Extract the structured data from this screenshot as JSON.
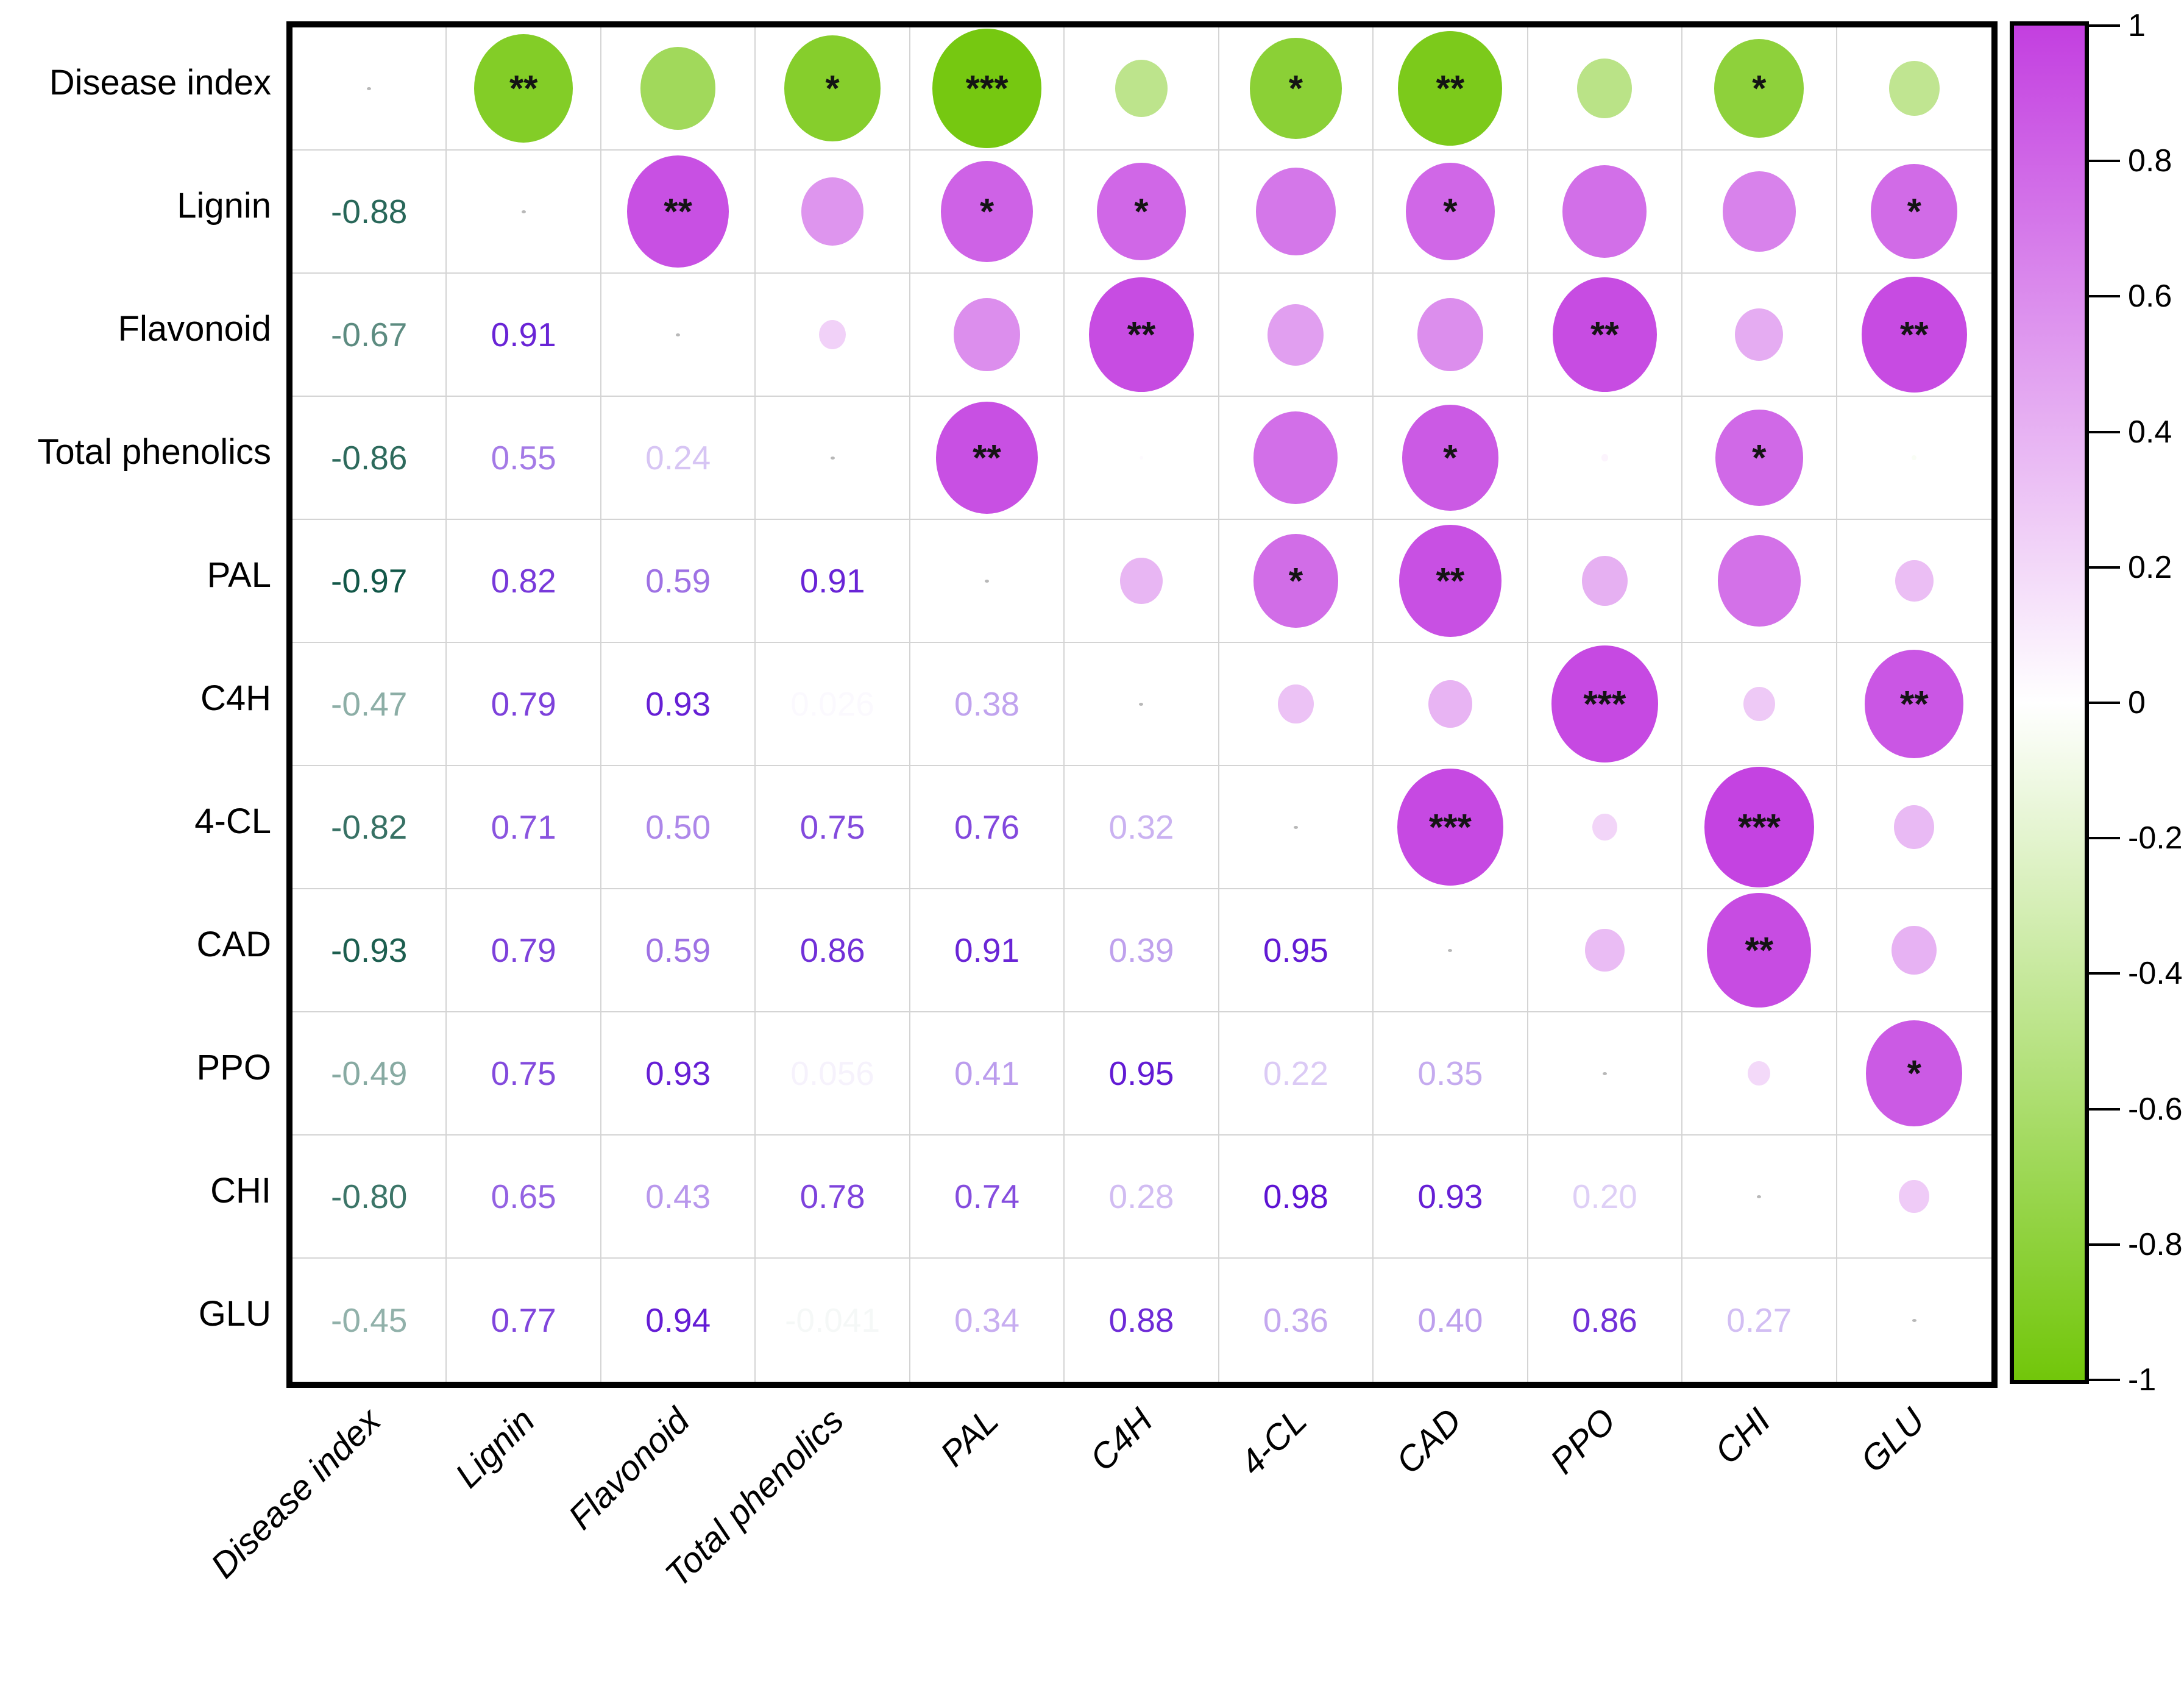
{
  "chart_data": {
    "type": "heatmap",
    "subtype": "correlation-matrix-bubble",
    "title": "",
    "variables": [
      "Disease index",
      "Lignin",
      "Flavonoid",
      "Total phenolics",
      "PAL",
      "C4H",
      "4-CL",
      "CAD",
      "PPO",
      "CHI",
      "GLU"
    ],
    "layout_notes": {
      "lower_triangle": "numeric correlation coefficients, text colored by value",
      "upper_triangle": "circles sized and colored by |r| with significance stars",
      "diagonal": "blank with tiny gray dot",
      "legend_position": "right colorbar"
    },
    "pairs": [
      {
        "a": 0,
        "b": 1,
        "r": -0.88,
        "label": "-0.88",
        "stars": "**"
      },
      {
        "a": 0,
        "b": 2,
        "r": -0.67,
        "label": "-0.67",
        "stars": ""
      },
      {
        "a": 0,
        "b": 3,
        "r": -0.86,
        "label": "-0.86",
        "stars": "*"
      },
      {
        "a": 0,
        "b": 4,
        "r": -0.97,
        "label": "-0.97",
        "stars": "***"
      },
      {
        "a": 0,
        "b": 5,
        "r": -0.47,
        "label": "-0.47",
        "stars": ""
      },
      {
        "a": 0,
        "b": 6,
        "r": -0.82,
        "label": "-0.82",
        "stars": "*"
      },
      {
        "a": 0,
        "b": 7,
        "r": -0.93,
        "label": "-0.93",
        "stars": "**"
      },
      {
        "a": 0,
        "b": 8,
        "r": -0.49,
        "label": "-0.49",
        "stars": ""
      },
      {
        "a": 0,
        "b": 9,
        "r": -0.8,
        "label": "-0.80",
        "stars": "*"
      },
      {
        "a": 0,
        "b": 10,
        "r": -0.45,
        "label": "-0.45",
        "stars": ""
      },
      {
        "a": 1,
        "b": 2,
        "r": 0.91,
        "label": "0.91",
        "stars": "**"
      },
      {
        "a": 1,
        "b": 3,
        "r": 0.55,
        "label": "0.55",
        "stars": ""
      },
      {
        "a": 1,
        "b": 4,
        "r": 0.82,
        "label": "0.82",
        "stars": "*"
      },
      {
        "a": 1,
        "b": 5,
        "r": 0.79,
        "label": "0.79",
        "stars": "*"
      },
      {
        "a": 1,
        "b": 6,
        "r": 0.71,
        "label": "0.71",
        "stars": ""
      },
      {
        "a": 1,
        "b": 7,
        "r": 0.79,
        "label": "0.79",
        "stars": "*"
      },
      {
        "a": 1,
        "b": 8,
        "r": 0.75,
        "label": "0.75",
        "stars": ""
      },
      {
        "a": 1,
        "b": 9,
        "r": 0.65,
        "label": "0.65",
        "stars": ""
      },
      {
        "a": 1,
        "b": 10,
        "r": 0.77,
        "label": "0.77",
        "stars": "*"
      },
      {
        "a": 2,
        "b": 3,
        "r": 0.24,
        "label": "0.24",
        "stars": ""
      },
      {
        "a": 2,
        "b": 4,
        "r": 0.59,
        "label": "0.59",
        "stars": ""
      },
      {
        "a": 2,
        "b": 5,
        "r": 0.93,
        "label": "0.93",
        "stars": "**"
      },
      {
        "a": 2,
        "b": 6,
        "r": 0.5,
        "label": "0.50",
        "stars": ""
      },
      {
        "a": 2,
        "b": 7,
        "r": 0.59,
        "label": "0.59",
        "stars": ""
      },
      {
        "a": 2,
        "b": 8,
        "r": 0.93,
        "label": "0.93",
        "stars": "**"
      },
      {
        "a": 2,
        "b": 9,
        "r": 0.43,
        "label": "0.43",
        "stars": ""
      },
      {
        "a": 2,
        "b": 10,
        "r": 0.94,
        "label": "0.94",
        "stars": "**"
      },
      {
        "a": 3,
        "b": 4,
        "r": 0.91,
        "label": "0.91",
        "stars": "**"
      },
      {
        "a": 3,
        "b": 5,
        "r": 0.026,
        "label": "0.026",
        "stars": ""
      },
      {
        "a": 3,
        "b": 6,
        "r": 0.75,
        "label": "0.75",
        "stars": ""
      },
      {
        "a": 3,
        "b": 7,
        "r": 0.86,
        "label": "0.86",
        "stars": "*"
      },
      {
        "a": 3,
        "b": 8,
        "r": 0.056,
        "label": "0.056",
        "stars": ""
      },
      {
        "a": 3,
        "b": 9,
        "r": 0.78,
        "label": "0.78",
        "stars": "*"
      },
      {
        "a": 3,
        "b": 10,
        "r": -0.041,
        "label": "-0.041",
        "stars": ""
      },
      {
        "a": 4,
        "b": 5,
        "r": 0.38,
        "label": "0.38",
        "stars": ""
      },
      {
        "a": 4,
        "b": 6,
        "r": 0.76,
        "label": "0.76",
        "stars": "*"
      },
      {
        "a": 4,
        "b": 7,
        "r": 0.91,
        "label": "0.91",
        "stars": "**"
      },
      {
        "a": 4,
        "b": 8,
        "r": 0.41,
        "label": "0.41",
        "stars": ""
      },
      {
        "a": 4,
        "b": 9,
        "r": 0.74,
        "label": "0.74",
        "stars": ""
      },
      {
        "a": 4,
        "b": 10,
        "r": 0.34,
        "label": "0.34",
        "stars": ""
      },
      {
        "a": 5,
        "b": 6,
        "r": 0.32,
        "label": "0.32",
        "stars": ""
      },
      {
        "a": 5,
        "b": 7,
        "r": 0.39,
        "label": "0.39",
        "stars": ""
      },
      {
        "a": 5,
        "b": 8,
        "r": 0.95,
        "label": "0.95",
        "stars": "***"
      },
      {
        "a": 5,
        "b": 9,
        "r": 0.28,
        "label": "0.28",
        "stars": ""
      },
      {
        "a": 5,
        "b": 10,
        "r": 0.88,
        "label": "0.88",
        "stars": "**"
      },
      {
        "a": 6,
        "b": 7,
        "r": 0.95,
        "label": "0.95",
        "stars": "***"
      },
      {
        "a": 6,
        "b": 8,
        "r": 0.22,
        "label": "0.22",
        "stars": ""
      },
      {
        "a": 6,
        "b": 9,
        "r": 0.98,
        "label": "0.98",
        "stars": "***"
      },
      {
        "a": 6,
        "b": 10,
        "r": 0.36,
        "label": "0.36",
        "stars": ""
      },
      {
        "a": 7,
        "b": 8,
        "r": 0.35,
        "label": "0.35",
        "stars": ""
      },
      {
        "a": 7,
        "b": 9,
        "r": 0.93,
        "label": "0.93",
        "stars": "**"
      },
      {
        "a": 7,
        "b": 10,
        "r": 0.4,
        "label": "0.40",
        "stars": ""
      },
      {
        "a": 8,
        "b": 9,
        "r": 0.2,
        "label": "0.20",
        "stars": ""
      },
      {
        "a": 8,
        "b": 10,
        "r": 0.86,
        "label": "0.86",
        "stars": "*"
      },
      {
        "a": 9,
        "b": 10,
        "r": 0.27,
        "label": "0.27",
        "stars": ""
      }
    ],
    "colorbar": {
      "min": -1,
      "max": 1,
      "ticks": [
        {
          "label": "1",
          "value": 1
        },
        {
          "label": "0.8",
          "value": 0.8
        },
        {
          "label": "0.6",
          "value": 0.6
        },
        {
          "label": "0.4",
          "value": 0.4
        },
        {
          "label": "0.2",
          "value": 0.2
        },
        {
          "label": "0",
          "value": 0
        },
        {
          "label": "-0.2",
          "value": -0.2
        },
        {
          "label": "-0.4",
          "value": -0.4
        },
        {
          "label": "-0.6",
          "value": -0.6
        },
        {
          "label": "-0.8",
          "value": -0.8
        },
        {
          "label": "-1",
          "value": -1
        }
      ]
    },
    "colors": {
      "circle_positive": "#c33fe0",
      "circle_negative": "#72c60a",
      "text_positive": "#5a0ed2",
      "text_negative": "#0b5242",
      "neutral": "#ffffff",
      "stars": "#141414",
      "gridline": "#d4d4d4",
      "border": "#000000"
    }
  }
}
